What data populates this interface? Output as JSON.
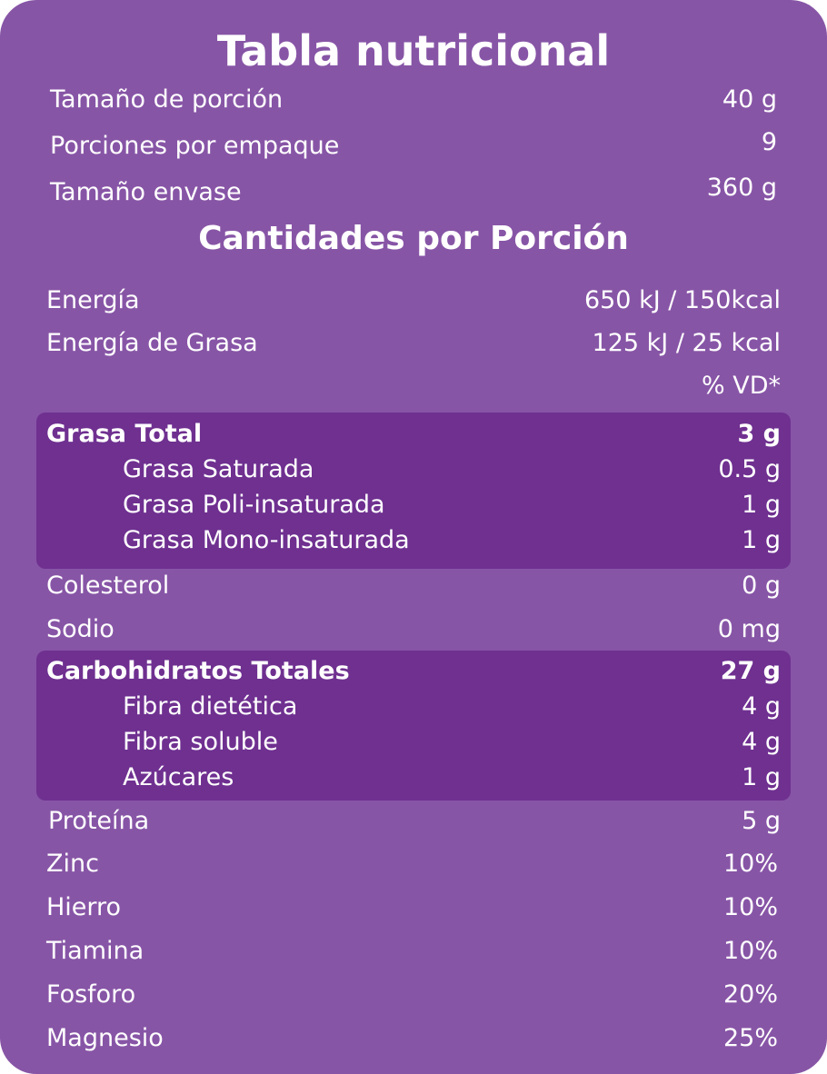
{
  "title": "Tabla nutricional",
  "serving": [
    {
      "label": "Tamaño de porción",
      "value": "40 g"
    },
    {
      "label": "Porciones por empaque",
      "value": "9"
    },
    {
      "label": "Tamaño envase",
      "value": "360 g"
    }
  ],
  "subtitle": "Cantidades por Porción",
  "energy": [
    {
      "label": "Energía",
      "value": "650 kJ / 150kcal"
    },
    {
      "label": "Energía de Grasa",
      "value": "125 kJ / 25 kcal"
    }
  ],
  "dv_header": "% VD*",
  "fat": {
    "label": "Grasa Total",
    "value": "3 g",
    "items": [
      {
        "label": "Grasa Saturada",
        "value": "0.5 g"
      },
      {
        "label": "Grasa Poli-insaturada",
        "value": "1 g"
      },
      {
        "label": "Grasa Mono-insaturada",
        "value": "1 g"
      }
    ]
  },
  "middle": [
    {
      "label": "Colesterol",
      "value": "0 g"
    },
    {
      "label": "Sodio",
      "value": "0 mg"
    }
  ],
  "carbs": {
    "label": "Carbohidratos Totales",
    "value": "27 g",
    "items": [
      {
        "label": "Fibra dietética",
        "value": "4 g"
      },
      {
        "label": "Fibra soluble",
        "value": "4 g"
      },
      {
        "label": "Azúcares",
        "value": "1 g"
      }
    ]
  },
  "bottom": [
    {
      "label": "Proteína",
      "value": "5 g"
    },
    {
      "label": "Zinc",
      "value": "10%"
    },
    {
      "label": "Hierro",
      "value": "10%"
    },
    {
      "label": "Tiamina",
      "value": "10%"
    },
    {
      "label": "Fosforo",
      "value": "20%"
    },
    {
      "label": "Magnesio",
      "value": "25%"
    }
  ],
  "colors": {
    "background": "#8755a6",
    "highlight": "#6f3090",
    "text": "#ffffff"
  }
}
